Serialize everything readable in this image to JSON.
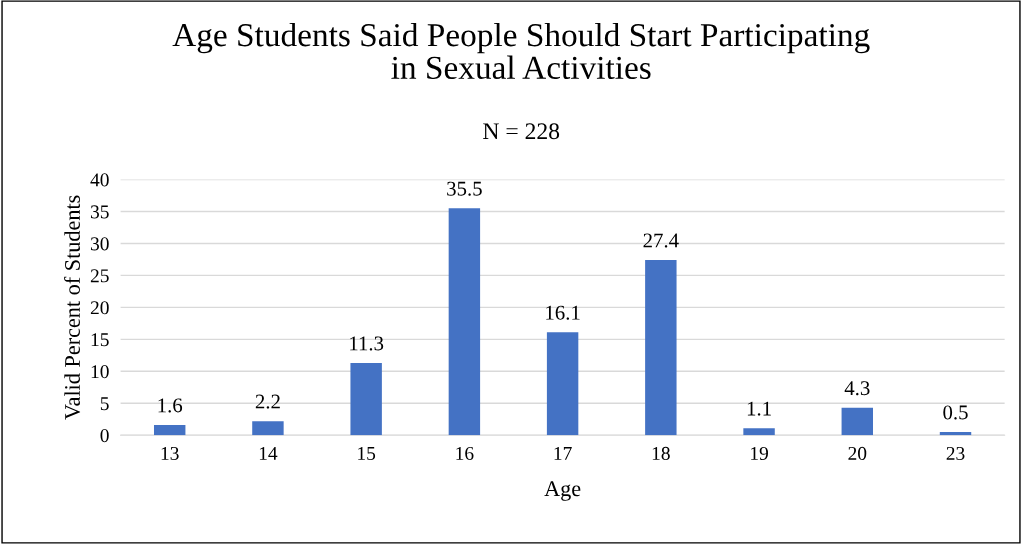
{
  "chart_data": {
    "type": "bar",
    "title": "Age Students Said People Should Start Participating\nin Sexual Activities",
    "subtitle": "N = 228",
    "xlabel": "Age",
    "ylabel": "Valid Percent of Students",
    "categories": [
      "13",
      "14",
      "15",
      "16",
      "17",
      "18",
      "19",
      "20",
      "23"
    ],
    "values": [
      1.6,
      2.2,
      11.3,
      35.5,
      16.1,
      27.4,
      1.1,
      4.3,
      0.5
    ],
    "color": "#4472c4",
    "ylim": [
      0,
      40
    ],
    "yticks": [
      0,
      5,
      10,
      15,
      20,
      25,
      30,
      35,
      40
    ],
    "grid": "y",
    "data_labels": true,
    "legend": false
  }
}
